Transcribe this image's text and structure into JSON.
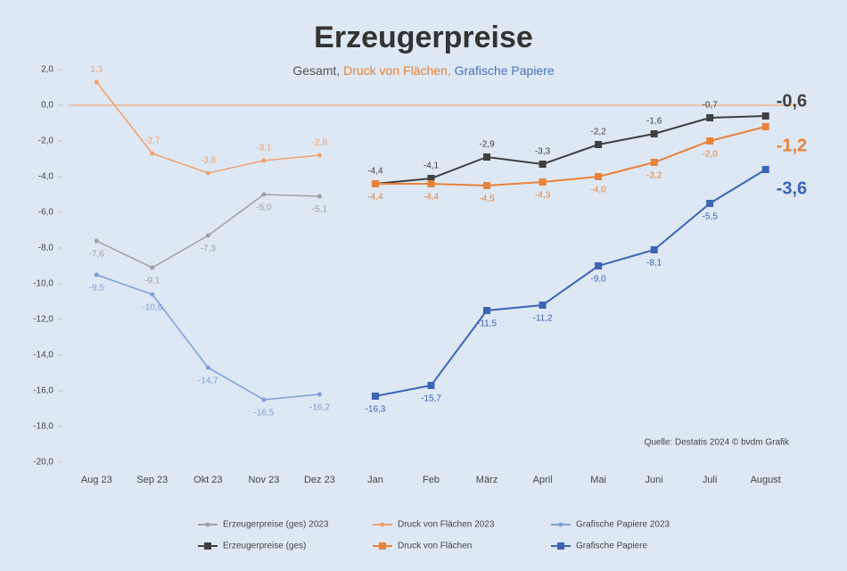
{
  "chart_data": {
    "type": "line",
    "title": "Erzeugerpreise",
    "subtitle": [
      {
        "text": "Gesamt, ",
        "color": "#555555"
      },
      {
        "text": "Druck von Flächen, ",
        "color": "#e8823a"
      },
      {
        "text": "Grafische Papiere",
        "color": "#4a72c0"
      }
    ],
    "source": "Quelle: Destatis 2024 © bvdm Grafik",
    "categories": [
      "Aug 23",
      "Sep 23",
      "Okt 23",
      "Nov 23",
      "Dez 23",
      "Jan",
      "Feb",
      "März",
      "April",
      "Mai",
      "Juni",
      "Juli",
      "August"
    ],
    "ylim": [
      -20,
      2
    ],
    "yticks": [
      {
        "value": 2,
        "label": "2,0"
      },
      {
        "value": 0,
        "label": "0,0"
      },
      {
        "value": -2,
        "label": "-2,0"
      },
      {
        "value": -4,
        "label": "-4,0"
      },
      {
        "value": -6,
        "label": "-6,0"
      },
      {
        "value": -8,
        "label": "-8,0"
      },
      {
        "value": -10,
        "label": "-10,0"
      },
      {
        "value": -12,
        "label": "-12,0"
      },
      {
        "value": -14,
        "label": "-14,0"
      },
      {
        "value": -16,
        "label": "-16,0"
      },
      {
        "value": -18,
        "label": "-18,0"
      },
      {
        "value": -20,
        "label": "-20,0"
      }
    ],
    "zero_line_color": "#f2b48a",
    "series": [
      {
        "name": "Erzeugerpreise (ges) 2023",
        "color": "#a0a0a0",
        "marker": "dot",
        "label_position": "below",
        "values": [
          -7.6,
          -9.1,
          -7.3,
          -5.0,
          -5.1,
          null,
          null,
          null,
          null,
          null,
          null,
          null,
          null
        ],
        "value_labels": [
          "-7,6",
          "-9,1",
          "-7,3",
          "-5,0",
          "-5,1",
          null,
          null,
          null,
          null,
          null,
          null,
          null,
          null
        ]
      },
      {
        "name": "Druck von Flächen 2023",
        "color": "#f0a070",
        "marker": "dot",
        "label_position": "above",
        "values": [
          1.3,
          -2.7,
          -3.8,
          -3.1,
          -2.8,
          null,
          null,
          null,
          null,
          null,
          null,
          null,
          null
        ],
        "value_labels": [
          "1,3",
          "-2,7",
          "-3,8",
          "-3,1",
          "-2,8",
          null,
          null,
          null,
          null,
          null,
          null,
          null,
          null
        ]
      },
      {
        "name": "Grafische Papiere 2023",
        "color": "#7f9fd8",
        "marker": "dot",
        "label_position": "below",
        "values": [
          -9.5,
          -10.6,
          -14.7,
          -16.5,
          -16.2,
          null,
          null,
          null,
          null,
          null,
          null,
          null,
          null
        ],
        "value_labels": [
          "-9,5",
          "-10,6",
          "-14,7",
          "-16,5",
          "-16,2",
          null,
          null,
          null,
          null,
          null,
          null,
          null,
          null
        ]
      },
      {
        "name": "Erzeugerpreise (ges)",
        "color": "#404040",
        "marker": "square",
        "label_position": "above",
        "values": [
          null,
          null,
          null,
          null,
          null,
          -4.4,
          -4.1,
          -2.9,
          -3.3,
          -2.2,
          -1.6,
          -0.7,
          -0.6
        ],
        "value_labels": [
          null,
          null,
          null,
          null,
          null,
          "-4,4",
          "-4,1",
          "-2,9",
          "-3,3",
          "-2,2",
          "-1,6",
          "-0,7",
          "-0,6"
        ]
      },
      {
        "name": "Druck von Flächen",
        "color": "#e8823a",
        "marker": "square",
        "label_position": "below",
        "values": [
          null,
          null,
          null,
          null,
          null,
          -4.4,
          -4.4,
          -4.5,
          -4.3,
          -4.0,
          -3.2,
          -2.0,
          -1.2
        ],
        "value_labels": [
          null,
          null,
          null,
          null,
          null,
          "-4,4",
          "-4,4",
          "-4,5",
          "-4,3",
          "-4,0",
          "-3,2",
          "-2,0",
          "-1,2"
        ]
      },
      {
        "name": "Grafische Papiere",
        "color": "#3c64b4",
        "marker": "square",
        "label_position": "below",
        "values": [
          null,
          null,
          null,
          null,
          null,
          -16.3,
          -15.7,
          -11.5,
          -11.2,
          -9.0,
          -8.1,
          -5.5,
          -3.6
        ],
        "value_labels": [
          null,
          null,
          null,
          null,
          null,
          "-16,3",
          "-15,7",
          "-11,5",
          "-11,2",
          "-9,0",
          "-8,1",
          "-5,5",
          "-3,6"
        ]
      }
    ]
  }
}
